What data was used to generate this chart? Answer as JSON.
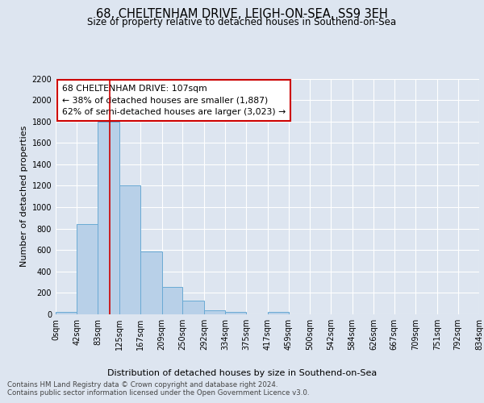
{
  "title": "68, CHELTENHAM DRIVE, LEIGH-ON-SEA, SS9 3EH",
  "subtitle": "Size of property relative to detached houses in Southend-on-Sea",
  "xlabel": "Distribution of detached houses by size in Southend-on-Sea",
  "ylabel": "Number of detached properties",
  "bin_edges": [
    0,
    42,
    83,
    125,
    167,
    209,
    250,
    292,
    334,
    375,
    417,
    459,
    500,
    542,
    584,
    626,
    667,
    709,
    751,
    792,
    834
  ],
  "bar_heights": [
    25,
    840,
    1800,
    1200,
    590,
    255,
    125,
    40,
    25,
    0,
    25,
    0,
    0,
    0,
    0,
    0,
    0,
    0,
    0,
    0
  ],
  "bar_color": "#b8d0e8",
  "bar_edge_color": "#6aaad4",
  "vline_x": 107,
  "vline_color": "#cc0000",
  "ylim": [
    0,
    2200
  ],
  "yticks": [
    0,
    200,
    400,
    600,
    800,
    1000,
    1200,
    1400,
    1600,
    1800,
    2000,
    2200
  ],
  "annotation_line1": "68 CHELTENHAM DRIVE: 107sqm",
  "annotation_line2": "← 38% of detached houses are smaller (1,887)",
  "annotation_line3": "62% of semi-detached houses are larger (3,023) →",
  "annotation_box_color": "#ffffff",
  "annotation_box_edge": "#cc0000",
  "footnote1": "Contains HM Land Registry data © Crown copyright and database right 2024.",
  "footnote2": "Contains public sector information licensed under the Open Government Licence v3.0.",
  "background_color": "#dde5f0",
  "plot_bg_color": "#dde5f0",
  "title_fontsize": 10.5,
  "subtitle_fontsize": 8.5,
  "tick_label_fontsize": 7,
  "ylabel_fontsize": 8,
  "xlabel_fontsize": 8
}
